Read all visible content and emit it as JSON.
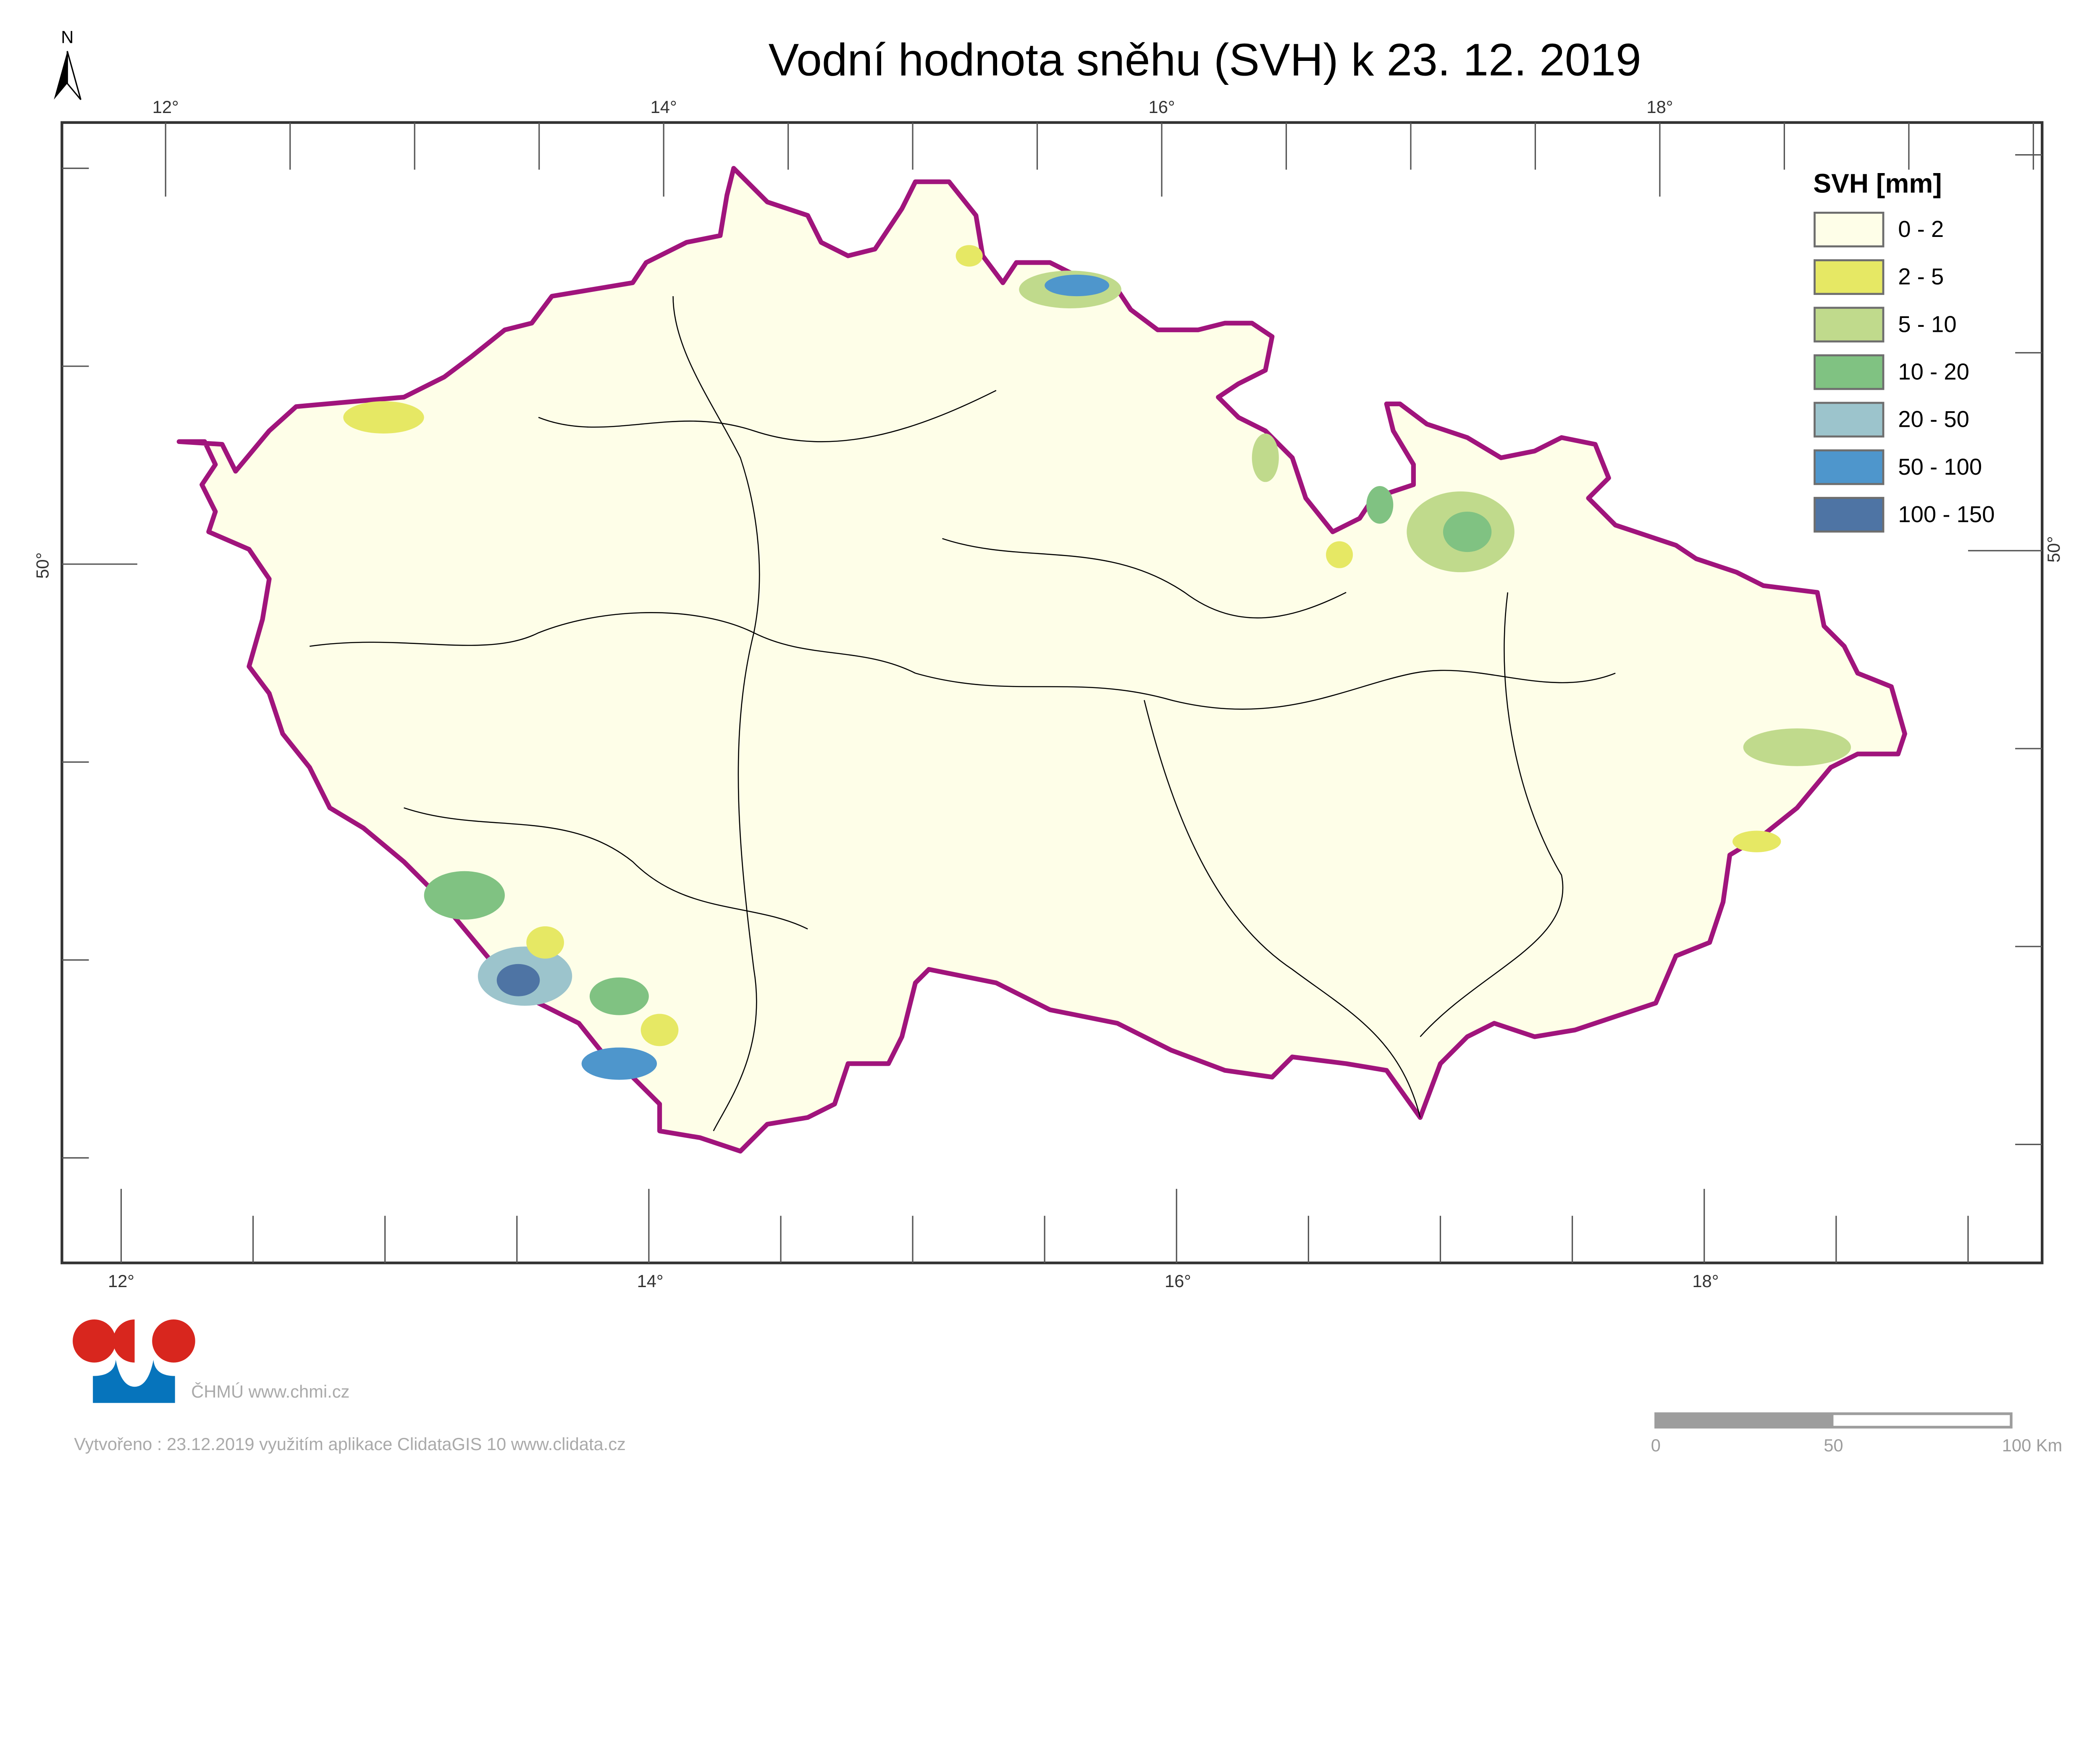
{
  "title": "Vodní hodnota sněhu (SVH) k 23. 12. 2019",
  "north_label": "N",
  "graticule": {
    "top_labels": [
      "12°",
      "14°",
      "16°",
      "18°"
    ],
    "bottom_labels": [
      "12°",
      "14°",
      "16°",
      "18°"
    ],
    "left_label": "50°",
    "right_label": "50°"
  },
  "legend": {
    "title": "SVH [mm]",
    "items": [
      {
        "label": "0 - 2",
        "color": "#fefee8"
      },
      {
        "label": "2 - 5",
        "color": "#e6e864"
      },
      {
        "label": "5 - 10",
        "color": "#c0da8c"
      },
      {
        "label": "10 - 20",
        "color": "#80c282"
      },
      {
        "label": "20 - 50",
        "color": "#9cc4cc"
      },
      {
        "label": "50 - 100",
        "color": "#4e96cc"
      },
      {
        "label": "100 - 150",
        "color": "#4e74a4"
      }
    ]
  },
  "colors": {
    "border": "#a0147c",
    "rivers": "#000000",
    "water": "#a8dcf0",
    "logo_red": "#d8261e",
    "logo_blue": "#0674bc"
  },
  "logo": {
    "text": "ČHMÚ www.chmi.cz"
  },
  "credit": "Vytvořeno : 23.12.2019 využitím aplikace ClidataGIS 10 www.clidata.cz",
  "scale_bar": {
    "labels": [
      "0",
      "50",
      "100 Km"
    ]
  }
}
